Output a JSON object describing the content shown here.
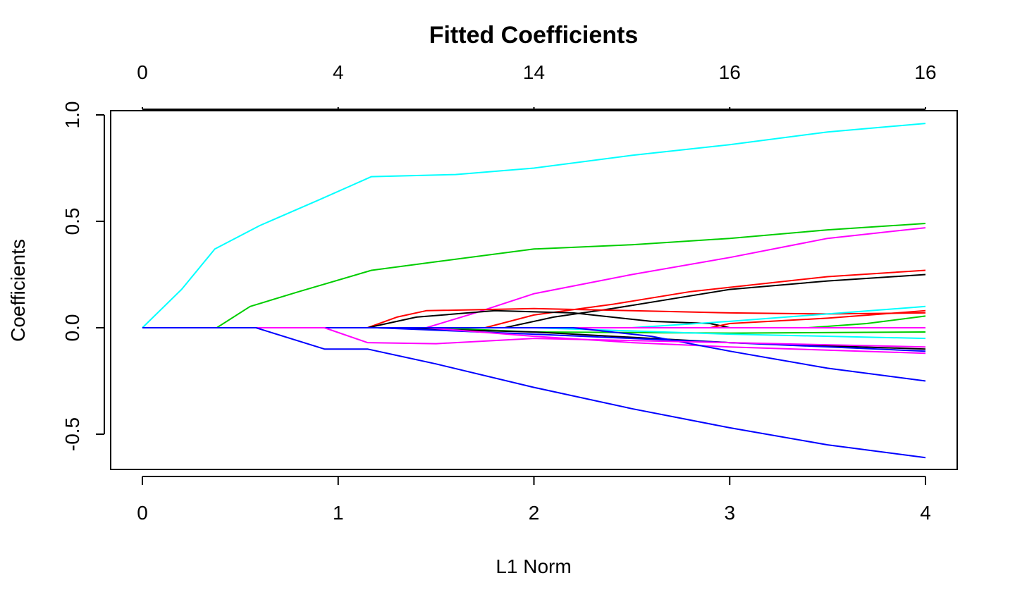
{
  "chart_data": {
    "type": "line",
    "title": "Fitted Coefficients",
    "xlabel": "L1 Norm",
    "ylabel": "Coefficients",
    "xlim": [
      0,
      4
    ],
    "ylim": [
      -0.67,
      1.02
    ],
    "x_ticks": [
      {
        "value": 0,
        "label": "0"
      },
      {
        "value": 1,
        "label": "1"
      },
      {
        "value": 2,
        "label": "2"
      },
      {
        "value": 3,
        "label": "3"
      },
      {
        "value": 4,
        "label": "4"
      }
    ],
    "y_ticks": [
      {
        "value": -0.5,
        "label": "-0.5"
      },
      {
        "value": 0.0,
        "label": "0.0"
      },
      {
        "value": 0.5,
        "label": "0.5"
      },
      {
        "value": 1.0,
        "label": "1.0"
      }
    ],
    "top_ticks": [
      {
        "value": 0,
        "label": "0"
      },
      {
        "value": 1,
        "label": "4"
      },
      {
        "value": 2,
        "label": "14"
      },
      {
        "value": 3,
        "label": "16"
      },
      {
        "value": 4,
        "label": "16"
      }
    ],
    "grid": false,
    "legend": "none",
    "series": [
      {
        "color": "#00FFFF",
        "points": [
          [
            0,
            0
          ],
          [
            0.2,
            0.18
          ],
          [
            0.37,
            0.37
          ],
          [
            0.6,
            0.48
          ],
          [
            0.9,
            0.6
          ],
          [
            1.17,
            0.71
          ],
          [
            1.6,
            0.72
          ],
          [
            2.0,
            0.75
          ],
          [
            2.5,
            0.81
          ],
          [
            3.0,
            0.86
          ],
          [
            3.5,
            0.92
          ],
          [
            4.0,
            0.96
          ]
        ]
      },
      {
        "color": "#00CD00",
        "points": [
          [
            0,
            0
          ],
          [
            0.38,
            0
          ],
          [
            0.55,
            0.1
          ],
          [
            0.8,
            0.17
          ],
          [
            1.17,
            0.27
          ],
          [
            1.5,
            0.31
          ],
          [
            2.0,
            0.37
          ],
          [
            2.5,
            0.39
          ],
          [
            3.0,
            0.42
          ],
          [
            3.5,
            0.46
          ],
          [
            4.0,
            0.49
          ]
        ]
      },
      {
        "color": "#FF00FF",
        "points": [
          [
            0,
            0
          ],
          [
            1.45,
            0
          ],
          [
            1.7,
            0.07
          ],
          [
            2.0,
            0.16
          ],
          [
            2.5,
            0.25
          ],
          [
            3.0,
            0.33
          ],
          [
            3.5,
            0.42
          ],
          [
            4.0,
            0.47
          ]
        ]
      },
      {
        "color": "#FF0000",
        "points": [
          [
            0,
            0
          ],
          [
            1.75,
            0
          ],
          [
            2.0,
            0.06
          ],
          [
            2.4,
            0.11
          ],
          [
            2.8,
            0.17
          ],
          [
            3.0,
            0.19
          ],
          [
            3.5,
            0.24
          ],
          [
            4.0,
            0.27
          ]
        ]
      },
      {
        "color": "#000000",
        "points": [
          [
            0,
            0
          ],
          [
            1.85,
            0
          ],
          [
            2.1,
            0.05
          ],
          [
            2.4,
            0.09
          ],
          [
            2.8,
            0.15
          ],
          [
            3.0,
            0.18
          ],
          [
            3.5,
            0.22
          ],
          [
            4.0,
            0.25
          ]
        ]
      },
      {
        "color": "#FF0000",
        "points": [
          [
            0,
            0
          ],
          [
            1.15,
            0
          ],
          [
            1.3,
            0.05
          ],
          [
            1.45,
            0.08
          ],
          [
            2.0,
            0.09
          ],
          [
            2.5,
            0.08
          ],
          [
            3.0,
            0.07
          ],
          [
            3.5,
            0.065
          ],
          [
            4.0,
            0.07
          ]
        ]
      },
      {
        "color": "#000000",
        "points": [
          [
            0,
            0
          ],
          [
            1.15,
            0
          ],
          [
            1.4,
            0.05
          ],
          [
            1.8,
            0.08
          ],
          [
            2.2,
            0.07
          ],
          [
            2.6,
            0.03
          ],
          [
            2.9,
            0.02
          ],
          [
            3.0,
            0.0
          ],
          [
            4.0,
            0.0
          ]
        ]
      },
      {
        "color": "#00FFFF",
        "points": [
          [
            0,
            0
          ],
          [
            2.5,
            0
          ],
          [
            3.0,
            0.03
          ],
          [
            3.5,
            0.065
          ],
          [
            4.0,
            0.1
          ]
        ]
      },
      {
        "color": "#FF0000",
        "points": [
          [
            0,
            0
          ],
          [
            2.9,
            0
          ],
          [
            3.0,
            0.02
          ],
          [
            3.5,
            0.045
          ],
          [
            4.0,
            0.08
          ]
        ]
      },
      {
        "color": "#00CD00",
        "points": [
          [
            0,
            0
          ],
          [
            3.4,
            0
          ],
          [
            3.7,
            0.02
          ],
          [
            4.0,
            0.055
          ]
        ]
      },
      {
        "color": "#FF00FF",
        "points": [
          [
            0,
            0
          ],
          [
            4.0,
            0
          ]
        ]
      },
      {
        "color": "#00CD00",
        "points": [
          [
            0,
            0
          ],
          [
            1.5,
            0
          ],
          [
            2.0,
            -0.02
          ],
          [
            3.0,
            -0.025
          ],
          [
            4.0,
            -0.02
          ]
        ]
      },
      {
        "color": "#00FFFF",
        "points": [
          [
            0,
            0
          ],
          [
            2.0,
            0
          ],
          [
            3.0,
            -0.03
          ],
          [
            4.0,
            -0.05
          ]
        ]
      },
      {
        "color": "#000000",
        "points": [
          [
            0,
            0
          ],
          [
            1.2,
            0
          ],
          [
            2.0,
            -0.02
          ],
          [
            3.0,
            -0.07
          ],
          [
            4.0,
            -0.1
          ]
        ]
      },
      {
        "color": "#0000FF",
        "points": [
          [
            0,
            0
          ],
          [
            1.2,
            0
          ],
          [
            2.0,
            -0.03
          ],
          [
            2.5,
            -0.05
          ],
          [
            3.0,
            -0.07
          ],
          [
            4.0,
            -0.11
          ]
        ]
      },
      {
        "color": "#FF00FF",
        "points": [
          [
            0,
            0
          ],
          [
            1.45,
            0
          ],
          [
            2.0,
            -0.04
          ],
          [
            2.5,
            -0.07
          ],
          [
            3.0,
            -0.09
          ],
          [
            4.0,
            -0.12
          ]
        ]
      },
      {
        "color": "#0000FF",
        "points": [
          [
            0,
            0
          ],
          [
            2.2,
            0
          ],
          [
            2.6,
            -0.04
          ],
          [
            3.0,
            -0.11
          ],
          [
            3.5,
            -0.19
          ],
          [
            4.0,
            -0.25
          ]
        ]
      },
      {
        "color": "#FF00FF",
        "points": [
          [
            0,
            0
          ],
          [
            0.93,
            0
          ],
          [
            1.15,
            -0.07
          ],
          [
            1.5,
            -0.075
          ],
          [
            2.0,
            -0.05
          ],
          [
            3.0,
            -0.07
          ],
          [
            4.0,
            -0.09
          ]
        ]
      },
      {
        "color": "#0000FF",
        "points": [
          [
            0,
            0
          ],
          [
            0.58,
            0
          ],
          [
            0.93,
            -0.1
          ],
          [
            1.15,
            -0.1
          ],
          [
            1.5,
            -0.17
          ],
          [
            2.0,
            -0.28
          ],
          [
            2.5,
            -0.38
          ],
          [
            3.0,
            -0.47
          ],
          [
            3.5,
            -0.55
          ],
          [
            4.0,
            -0.61
          ]
        ]
      }
    ]
  }
}
